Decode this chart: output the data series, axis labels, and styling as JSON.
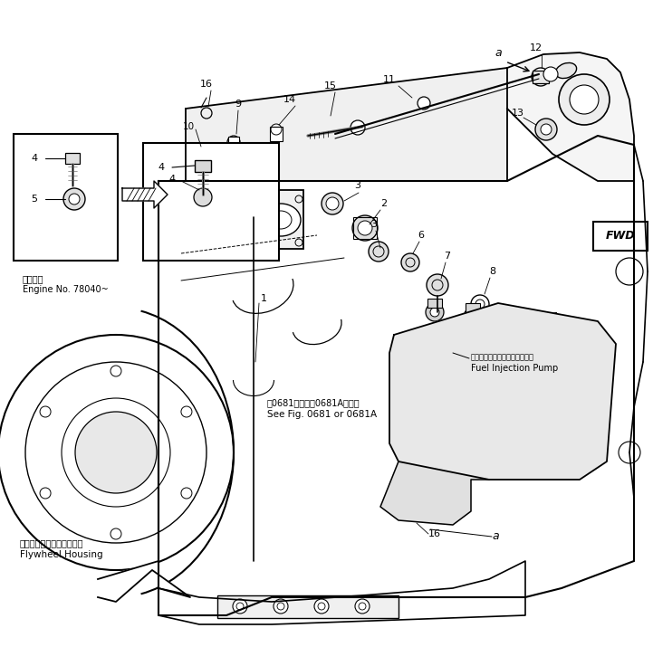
{
  "bg_color": "#ffffff",
  "line_color": "#000000",
  "fig_width": 7.21,
  "fig_height": 7.36,
  "dpi": 100,
  "engine_note_ja": "適用号機",
  "engine_note_en": "Engine No. 78040~",
  "see_fig_ja": "第0681図または0681A図参照",
  "see_fig_en": "See Fig. 0681 or 0681A",
  "fuel_pump_ja": "フェルインジェクションポンプ",
  "fuel_pump_en": "Fuel Injection Pump",
  "flywheel_ja": "フライホイールハウジング",
  "flywheel_en": "Flywheel Housing"
}
